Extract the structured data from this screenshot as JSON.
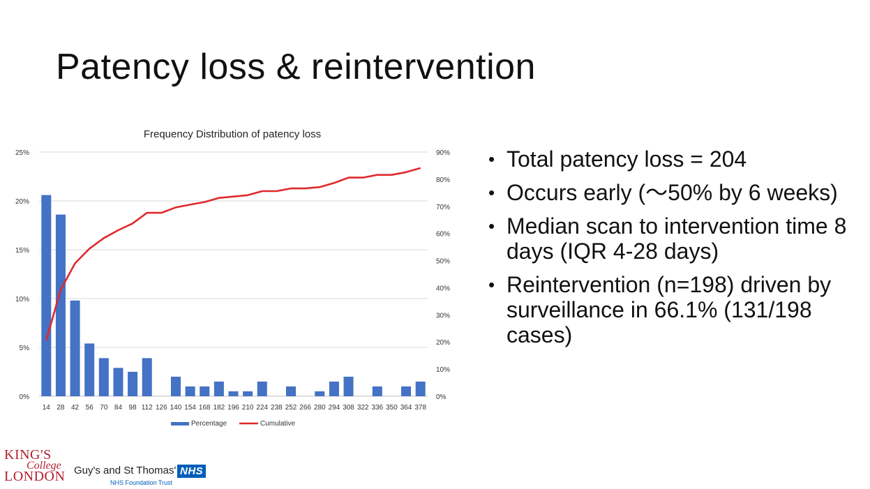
{
  "slide": {
    "title": "Patency loss & reintervention",
    "bullets": [
      "Total patency loss = 204",
      "Occurs early (〜50% by 6 weeks)",
      "Median scan to intervention time 8 days (IQR 4-28 days)",
      "Reintervention (n=198) driven by surveillance in 66.1%  (131/198 cases)"
    ]
  },
  "footer": {
    "kcl_line1": "KING'S",
    "kcl_line2": "College",
    "kcl_line3": "LONDON",
    "gst_name": "Guy's and St Thomas'",
    "nhs_badge": "NHS",
    "nhs_trust": "NHS Foundation Trust"
  },
  "colors": {
    "bar": "#4472c4",
    "line": "#e0292c",
    "grid": "#d9d9d9",
    "axis_text": "#333333"
  },
  "chart_data": {
    "type": "bar",
    "title": "Frequency Distribution of patency loss",
    "categories": [
      "14",
      "28",
      "42",
      "56",
      "70",
      "84",
      "98",
      "112",
      "126",
      "140",
      "154",
      "168",
      "182",
      "196",
      "210",
      "224",
      "238",
      "252",
      "266",
      "280",
      "294",
      "308",
      "322",
      "336",
      "350",
      "364",
      "378"
    ],
    "series": [
      {
        "name": "Percentage",
        "type": "bar",
        "axis": "left",
        "values": [
          20.6,
          18.6,
          9.8,
          5.4,
          3.9,
          2.9,
          2.5,
          3.9,
          0,
          2.0,
          1.0,
          1.0,
          1.5,
          0.5,
          0.5,
          1.5,
          0,
          1.0,
          0,
          0.5,
          1.5,
          2.0,
          0,
          1.0,
          0,
          1.0,
          1.5
        ]
      },
      {
        "name": "Cumulative",
        "type": "line",
        "axis": "right",
        "values": [
          20.6,
          39.2,
          49.0,
          54.4,
          58.3,
          61.2,
          63.7,
          67.6,
          67.6,
          69.6,
          70.6,
          71.6,
          73.1,
          73.6,
          74.1,
          75.6,
          75.6,
          76.6,
          76.6,
          77.1,
          78.6,
          80.6,
          80.6,
          81.6,
          81.6,
          82.6,
          84.1
        ]
      }
    ],
    "y_left": {
      "min": 0,
      "max": 25,
      "ticks": [
        0,
        5,
        10,
        15,
        20,
        25
      ],
      "tick_labels": [
        "0%",
        "5%",
        "10%",
        "15%",
        "20%",
        "25%"
      ]
    },
    "y_right": {
      "min": 0,
      "max": 90,
      "ticks": [
        0,
        10,
        20,
        30,
        40,
        50,
        60,
        70,
        80,
        90
      ],
      "tick_labels": [
        "0%",
        "10%",
        "20%",
        "30%",
        "40%",
        "50%",
        "60%",
        "70%",
        "80%",
        "90%"
      ]
    },
    "grid": true,
    "legend_position": "bottom"
  }
}
